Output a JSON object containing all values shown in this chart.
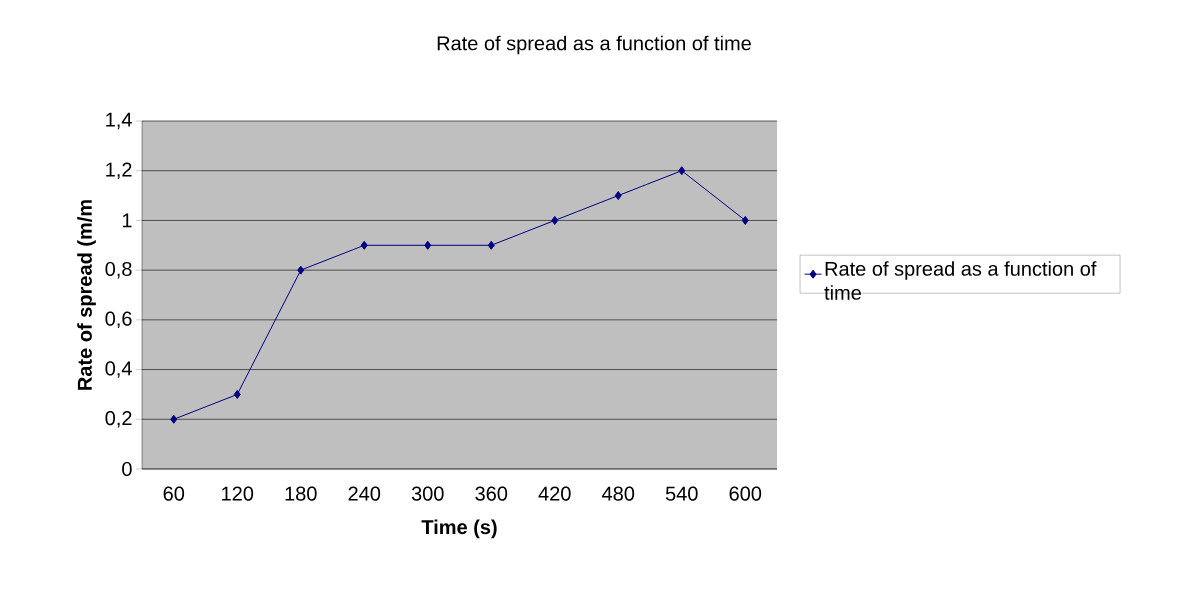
{
  "chart_data": {
    "type": "line",
    "title": "Rate of spread as a function of time",
    "xlabel": "Time (s)",
    "ylabel": "Rate of spread (m/m",
    "categories": [
      "60",
      "120",
      "180",
      "240",
      "300",
      "360",
      "420",
      "480",
      "540",
      "600"
    ],
    "series": [
      {
        "name": "Rate of spread as a function of time",
        "color": "#000080",
        "values": [
          0.2,
          0.3,
          0.8,
          0.9,
          0.9,
          0.9,
          1.0,
          1.1,
          1.2,
          1.0
        ]
      }
    ],
    "ylim": [
      0,
      1.4
    ],
    "yticks": [
      0,
      {
        "value": 0.2,
        "label": "0,2"
      },
      {
        "value": 0.4,
        "label": "0,4"
      },
      {
        "value": 0.6,
        "label": "0,6"
      },
      {
        "value": 0.8,
        "label": "0,8"
      },
      1,
      {
        "value": 1.2,
        "label": "1,2"
      },
      {
        "value": 1.4,
        "label": "1,4"
      }
    ],
    "grid": "y",
    "legend": "right",
    "marker": "diamond"
  }
}
